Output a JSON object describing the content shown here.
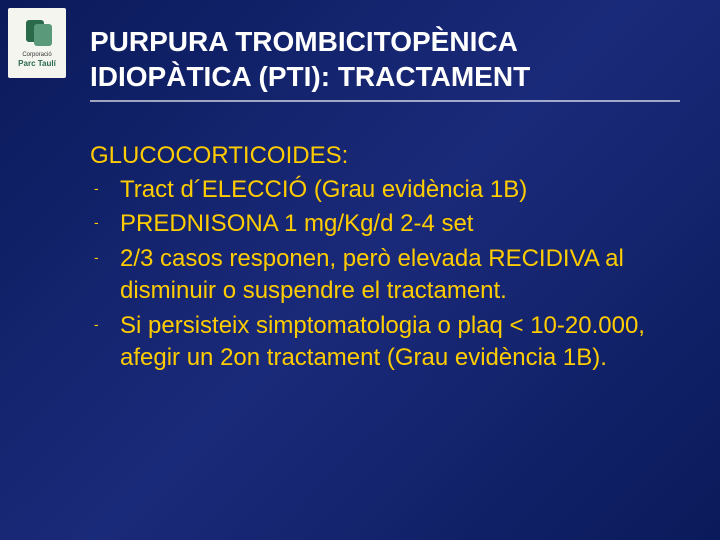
{
  "logo": {
    "line1": "Corporació",
    "line2": "Parc Taulí"
  },
  "title_line1": "PURPURA TROMBICITOPÈNICA",
  "title_line2": "IDIOPÀTICA (PTI): TRACTAMENT",
  "section_heading": "GLUCOCORTICOIDES:",
  "bullets": [
    "Tract d´ELECCIÓ (Grau evidència 1B)",
    "PREDNISONA 1 mg/Kg/d 2-4 set",
    "2/3 casos responen, però elevada RECIDIVA al disminuir o suspendre el tractament.",
    "Si persisteix simptomatologia o plaq < 10-20.000, afegir un 2on tractament (Grau evidència 1B)."
  ],
  "style": {
    "title_fontsize": 28,
    "title_color": "#ffffff",
    "body_fontsize": 24,
    "body_color": "#ffcc00",
    "bullet_marker": "-",
    "background_gradient": [
      "#0a1a5a",
      "#1a2a7a",
      "#0a1a5a"
    ],
    "underline_color": "rgba(255,255,255,0.6)"
  }
}
